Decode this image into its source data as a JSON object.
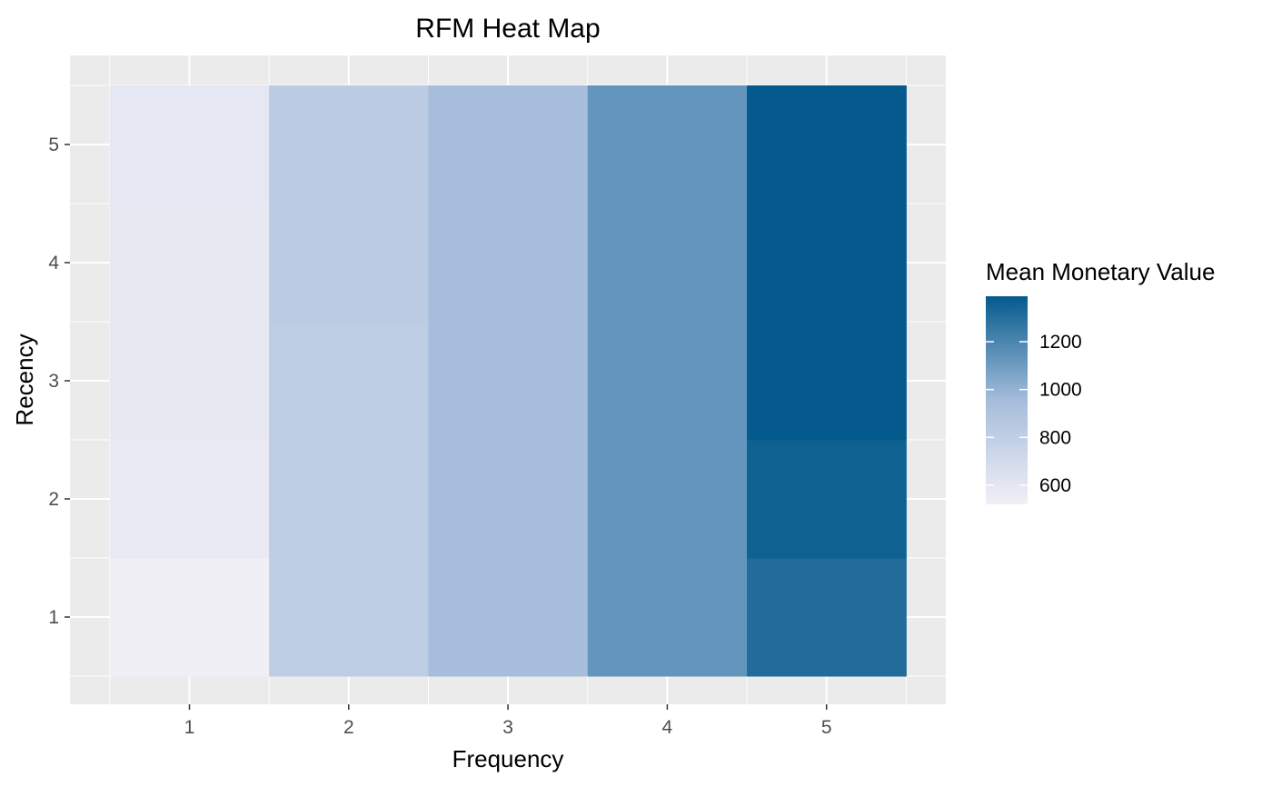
{
  "chart_data": {
    "type": "heatmap",
    "title": "RFM Heat Map",
    "xlabel": "Frequency",
    "ylabel": "Recency",
    "x_categories": [
      "1",
      "2",
      "3",
      "4",
      "5"
    ],
    "y_categories": [
      "1",
      "2",
      "3",
      "4",
      "5"
    ],
    "cells": [
      {
        "x": "1",
        "y": "1",
        "value": 520
      },
      {
        "x": "1",
        "y": "2",
        "value": 560
      },
      {
        "x": "1",
        "y": "3",
        "value": 580
      },
      {
        "x": "1",
        "y": "4",
        "value": 585
      },
      {
        "x": "1",
        "y": "5",
        "value": 590
      },
      {
        "x": "2",
        "y": "1",
        "value": 820
      },
      {
        "x": "2",
        "y": "2",
        "value": 820
      },
      {
        "x": "2",
        "y": "3",
        "value": 820
      },
      {
        "x": "2",
        "y": "4",
        "value": 830
      },
      {
        "x": "2",
        "y": "5",
        "value": 830
      },
      {
        "x": "3",
        "y": "1",
        "value": 950
      },
      {
        "x": "3",
        "y": "2",
        "value": 950
      },
      {
        "x": "3",
        "y": "3",
        "value": 950
      },
      {
        "x": "3",
        "y": "4",
        "value": 950
      },
      {
        "x": "3",
        "y": "5",
        "value": 950
      },
      {
        "x": "4",
        "y": "1",
        "value": 1130
      },
      {
        "x": "4",
        "y": "2",
        "value": 1130
      },
      {
        "x": "4",
        "y": "3",
        "value": 1130
      },
      {
        "x": "4",
        "y": "4",
        "value": 1130
      },
      {
        "x": "4",
        "y": "5",
        "value": 1130
      },
      {
        "x": "5",
        "y": "1",
        "value": 1310
      },
      {
        "x": "5",
        "y": "2",
        "value": 1360
      },
      {
        "x": "5",
        "y": "3",
        "value": 1390
      },
      {
        "x": "5",
        "y": "4",
        "value": 1390
      },
      {
        "x": "5",
        "y": "5",
        "value": 1390
      }
    ],
    "legend": {
      "title": "Mean Monetary Value",
      "range": [
        520,
        1390
      ],
      "ticks": [
        600,
        800,
        1000,
        1200
      ],
      "placement": "right"
    },
    "colors": {
      "low": "#f1eff6",
      "high": "#045a8d",
      "panel_background": "#ebebeb",
      "gridline": "#ffffff"
    },
    "grid": true
  }
}
